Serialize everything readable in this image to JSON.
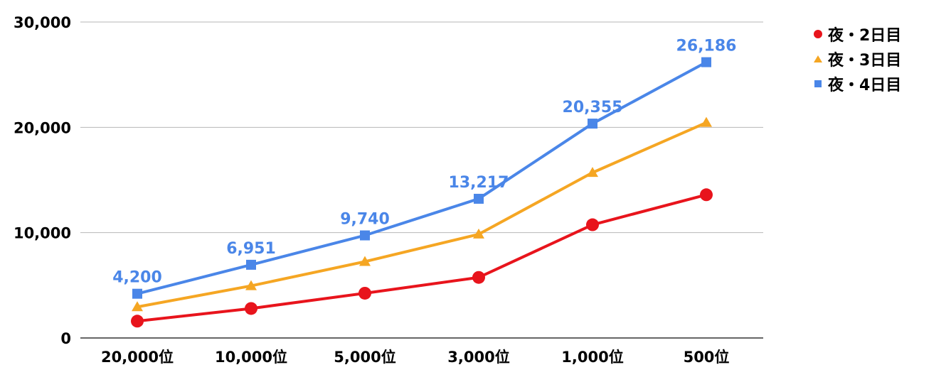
{
  "chart_data": {
    "type": "line",
    "categories": [
      "20,000位",
      "10,000位",
      "5,000位",
      "3,000位",
      "1,000位",
      "500位"
    ],
    "ylim": [
      0,
      30000
    ],
    "yticks": [
      0,
      10000,
      20000,
      30000
    ],
    "ytick_labels": [
      "0",
      "10,000",
      "20,000",
      "30,000"
    ],
    "grid": true,
    "legend_position": "top-right",
    "series": [
      {
        "name": "夜・2日目",
        "color": "#e8141c",
        "marker": "circle",
        "values": [
          1600,
          2800,
          4250,
          5750,
          10750,
          13600
        ],
        "labels": null
      },
      {
        "name": "夜・3日目",
        "color": "#f5a623",
        "marker": "triangle",
        "values": [
          2950,
          4950,
          7250,
          9850,
          15700,
          20450
        ],
        "labels": null
      },
      {
        "name": "夜・4日目",
        "color": "#4a86e8",
        "marker": "square",
        "values": [
          4200,
          6951,
          9740,
          13217,
          20355,
          26186
        ],
        "labels": [
          "4,200",
          "6,951",
          "9,740",
          "13,217",
          "20,355",
          "26,186"
        ]
      }
    ]
  }
}
